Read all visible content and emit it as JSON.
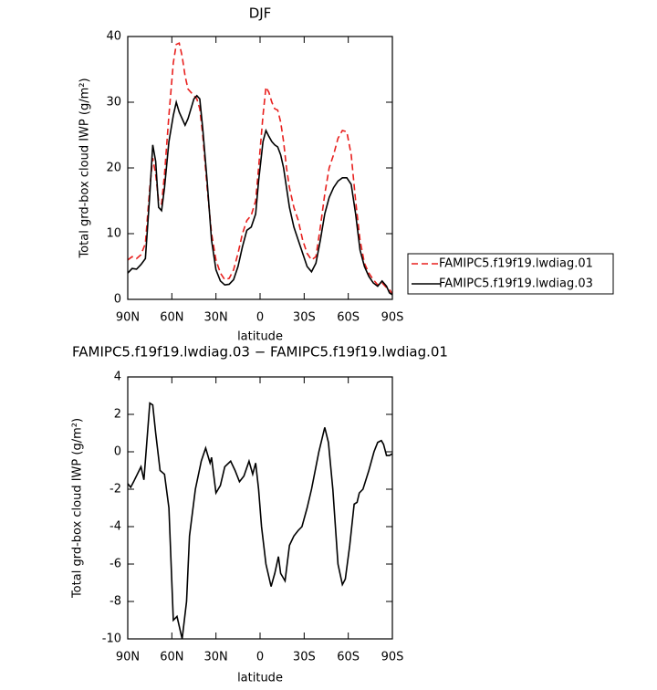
{
  "chart_data": [
    {
      "type": "line",
      "title": "DJF",
      "xlabel": "latitude",
      "ylabel": "Total grd-box cloud IWP (g/m²)",
      "x": [
        90,
        87,
        84,
        81,
        78,
        75,
        73,
        71,
        69,
        67,
        65,
        62,
        59,
        57,
        55,
        53,
        51,
        49,
        47,
        45,
        43,
        41,
        39,
        36,
        33,
        30,
        27,
        24,
        21,
        18,
        15,
        12,
        9,
        6,
        3,
        1,
        -2,
        -4,
        -6,
        -8,
        -10,
        -12,
        -14,
        -16,
        -18,
        -20,
        -23,
        -26,
        -29,
        -32,
        -35,
        -38,
        -41,
        -44,
        -47,
        -50,
        -53,
        -56,
        -59,
        -62,
        -65,
        -68,
        -71,
        -74,
        -77,
        -80,
        -83,
        -86,
        -88,
        -90
      ],
      "series": [
        {
          "name": "FAMIPC5.f19f19.lwdiag.01",
          "color": "#e8201e",
          "linestyle": "dashed",
          "values": [
            6.0,
            6.5,
            6.2,
            6.8,
            8.5,
            17,
            21.5,
            19,
            15,
            14.5,
            19,
            28,
            36,
            38.8,
            39,
            37,
            34,
            32,
            31.5,
            31,
            30.5,
            29,
            25,
            17,
            10,
            6.0,
            4.0,
            3.0,
            3.2,
            4.5,
            7,
            10,
            12,
            12.8,
            15,
            20,
            28,
            32.3,
            31.5,
            30,
            29,
            28.8,
            27,
            24,
            20,
            17,
            14,
            12,
            9,
            7,
            6,
            6.5,
            11,
            16,
            20,
            22,
            24.5,
            25.7,
            25.5,
            22,
            15,
            9,
            5.5,
            4,
            3,
            2.2,
            2.5,
            1.8,
            1.5,
            0.8
          ]
        },
        {
          "name": "FAMIPC5.f19f19.lwdiag.03",
          "color": "#000000",
          "linestyle": "solid",
          "values": [
            4.0,
            4.7,
            4.6,
            5.3,
            6.2,
            16,
            23.5,
            21,
            14,
            13.5,
            17,
            24,
            28,
            30,
            28.5,
            27.5,
            26.5,
            27.5,
            29,
            30.5,
            31,
            30.5,
            26,
            18,
            9,
            4.5,
            2.8,
            2.2,
            2.3,
            3.0,
            5,
            8,
            10.5,
            11,
            13,
            18,
            24,
            25.7,
            24.8,
            24,
            23.5,
            23.2,
            22,
            20,
            17,
            14,
            11,
            9,
            7,
            5,
            4.2,
            5.5,
            9,
            13,
            15.5,
            17,
            18,
            18.5,
            18.5,
            17.5,
            13,
            7.5,
            5,
            3.5,
            2.5,
            2.0,
            2.8,
            2.0,
            1.0,
            0.7
          ]
        }
      ],
      "xlim": [
        90,
        -90
      ],
      "ylim": [
        0,
        40
      ],
      "xticks": [
        {
          "value": 90,
          "label": "90N"
        },
        {
          "value": 60,
          "label": "60N"
        },
        {
          "value": 30,
          "label": "30N"
        },
        0,
        {
          "value": -30,
          "label": "30S"
        },
        {
          "value": -60,
          "label": "60S"
        },
        {
          "value": -90,
          "label": "90S"
        }
      ],
      "yticks": [
        0,
        10,
        20,
        30,
        40
      ],
      "legend": "right"
    },
    {
      "type": "line",
      "title": "FAMIPC5.f19f19.lwdiag.03 − FAMIPC5.f19f19.lwdiag.01",
      "xlabel": "latitude",
      "ylabel": "Total grd-box cloud IWP (g/m²)",
      "x": [
        90,
        88,
        86,
        81,
        79,
        75,
        73,
        71,
        68,
        65,
        62,
        59,
        56.5,
        53,
        50,
        48,
        44,
        40,
        37,
        34,
        33,
        30,
        27,
        24,
        20,
        17,
        14,
        11,
        7.5,
        5,
        3,
        1,
        -1,
        -4,
        -7.5,
        -10,
        -12.5,
        -14,
        -17,
        -20,
        -23,
        -26,
        -28.5,
        -32,
        -35,
        -40,
        -44,
        -46.5,
        -49.5,
        -53,
        -56,
        -58,
        -61,
        -64,
        -66,
        -67.5,
        -70,
        -74,
        -77.5,
        -80,
        -82.5,
        -84,
        -86,
        -88,
        -90
      ],
      "values": [
        -1.7,
        -1.9,
        -1.6,
        -0.8,
        -1.5,
        2.6,
        2.5,
        1,
        -1,
        -1.2,
        -3,
        -9,
        -8.8,
        -10,
        -8,
        -4.5,
        -2,
        -0.5,
        0.2,
        -0.6,
        -0.3,
        -2.2,
        -1.8,
        -0.8,
        -0.5,
        -1.0,
        -1.6,
        -1.3,
        -0.5,
        -1.2,
        -0.6,
        -2,
        -4,
        -6,
        -7.2,
        -6.5,
        -5.6,
        -6.5,
        -6.9,
        -5,
        -4.5,
        -4.2,
        -4.0,
        -3,
        -2,
        0,
        1.3,
        0.5,
        -2,
        -6,
        -7.1,
        -6.8,
        -5,
        -2.8,
        -2.7,
        -2.2,
        -2,
        -1,
        0,
        0.5,
        0.6,
        0.4,
        -0.2,
        -0.2,
        -0.1
      ],
      "color": "#000000",
      "xlim": [
        90,
        -90
      ],
      "ylim": [
        -10,
        4
      ],
      "xticks": [
        {
          "value": 90,
          "label": "90N"
        },
        {
          "value": 60,
          "label": "60N"
        },
        {
          "value": 30,
          "label": "30N"
        },
        0,
        {
          "value": -30,
          "label": "30S"
        },
        {
          "value": -60,
          "label": "60S"
        },
        {
          "value": -90,
          "label": "90S"
        }
      ],
      "yticks": [
        -10,
        -8,
        -6,
        -4,
        -2,
        0,
        2,
        4
      ]
    }
  ]
}
